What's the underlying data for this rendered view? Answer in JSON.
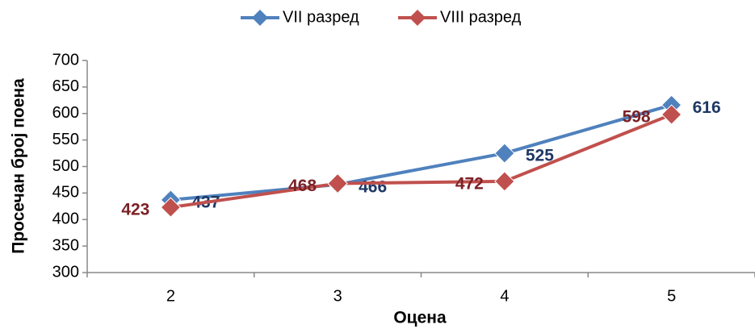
{
  "chart_data": {
    "type": "line",
    "x_label": "Оцена",
    "y_label": "Просечан број поена",
    "categories": [
      "2",
      "3",
      "4",
      "5"
    ],
    "series": [
      {
        "name": "VII разред",
        "color": "#4f81bd",
        "values": [
          437,
          466,
          525,
          616
        ]
      },
      {
        "name": "VIII разред",
        "color": "#c0504d",
        "values": [
          423,
          468,
          472,
          598
        ]
      }
    ],
    "ylim": [
      300,
      700
    ],
    "yticks": [
      300,
      350,
      400,
      450,
      500,
      550,
      600,
      650,
      700
    ],
    "grid": false,
    "legend": "top"
  }
}
